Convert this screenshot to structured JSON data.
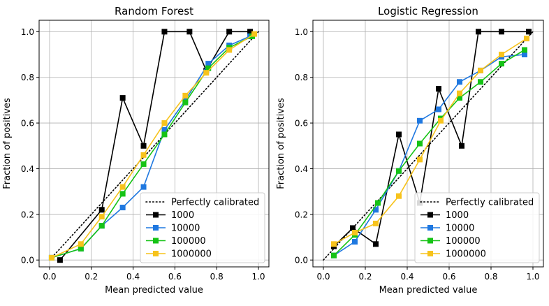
{
  "chart_data": [
    {
      "type": "line",
      "title": "Random Forest",
      "xlabel": "Mean predicted value",
      "ylabel": "Fraction of positives",
      "xlim": [
        -0.05,
        1.05
      ],
      "ylim": [
        -0.03,
        1.05
      ],
      "xticks": [
        "0.0",
        "0.2",
        "0.4",
        "0.6",
        "0.8",
        "1.0"
      ],
      "yticks": [
        "0.0",
        "0.2",
        "0.4",
        "0.6",
        "0.8",
        "1.0"
      ],
      "grid": true,
      "legend_position": "lower-right",
      "legend_entries": [
        "Perfectly calibrated",
        "1000",
        "10000",
        "100000",
        "1000000"
      ],
      "reference_line": {
        "name": "Perfectly calibrated",
        "x": [
          0,
          1
        ],
        "y": [
          0,
          1
        ],
        "color": "#000000",
        "style": "dotted"
      },
      "series": [
        {
          "name": "1000",
          "color": "#000000",
          "x": [
            0.05,
            0.25,
            0.35,
            0.45,
            0.55,
            0.67,
            0.75,
            0.86,
            0.96
          ],
          "y": [
            0.0,
            0.22,
            0.71,
            0.5,
            1.0,
            1.0,
            0.83,
            1.0,
            1.0
          ]
        },
        {
          "name": "10000",
          "color": "#1f78e0",
          "x": [
            0.01,
            0.15,
            0.25,
            0.35,
            0.45,
            0.55,
            0.65,
            0.76,
            0.86,
            0.96
          ],
          "y": [
            0.01,
            0.05,
            0.15,
            0.23,
            0.32,
            0.57,
            0.7,
            0.86,
            0.94,
            0.98
          ]
        },
        {
          "name": "100000",
          "color": "#16c316",
          "x": [
            0.01,
            0.15,
            0.25,
            0.35,
            0.45,
            0.55,
            0.65,
            0.76,
            0.86,
            0.97
          ],
          "y": [
            0.01,
            0.05,
            0.15,
            0.29,
            0.42,
            0.55,
            0.69,
            0.84,
            0.93,
            0.98
          ]
        },
        {
          "name": "1000000",
          "color": "#f7c31c",
          "x": [
            0.01,
            0.15,
            0.25,
            0.35,
            0.45,
            0.55,
            0.65,
            0.75,
            0.86,
            0.98
          ],
          "y": [
            0.01,
            0.07,
            0.19,
            0.32,
            0.46,
            0.6,
            0.72,
            0.82,
            0.92,
            0.99
          ]
        }
      ]
    },
    {
      "type": "line",
      "title": "Logistic Regression",
      "xlabel": "Mean predicted value",
      "ylabel": "Fraction of positives",
      "xlim": [
        -0.05,
        1.05
      ],
      "ylim": [
        -0.03,
        1.05
      ],
      "xticks": [
        "0.0",
        "0.2",
        "0.4",
        "0.6",
        "0.8",
        "1.0"
      ],
      "yticks": [
        "0.0",
        "0.2",
        "0.4",
        "0.6",
        "0.8",
        "1.0"
      ],
      "grid": true,
      "legend_position": "lower-right",
      "legend_entries": [
        "Perfectly calibrated",
        "1000",
        "10000",
        "100000",
        "1000000"
      ],
      "reference_line": {
        "name": "Perfectly calibrated",
        "x": [
          0,
          1
        ],
        "y": [
          0,
          1
        ],
        "color": "#000000",
        "style": "dotted"
      },
      "series": [
        {
          "name": "1000",
          "color": "#000000",
          "x": [
            0.05,
            0.14,
            0.25,
            0.36,
            0.46,
            0.55,
            0.66,
            0.74,
            0.85,
            0.98
          ],
          "y": [
            0.06,
            0.14,
            0.07,
            0.55,
            0.25,
            0.75,
            0.5,
            1.0,
            1.0,
            1.0
          ]
        },
        {
          "name": "10000",
          "color": "#1f78e0",
          "x": [
            0.05,
            0.15,
            0.25,
            0.36,
            0.46,
            0.55,
            0.65,
            0.75,
            0.85,
            0.96
          ],
          "y": [
            0.02,
            0.08,
            0.22,
            0.39,
            0.61,
            0.66,
            0.78,
            0.83,
            0.89,
            0.9
          ]
        },
        {
          "name": "100000",
          "color": "#16c316",
          "x": [
            0.05,
            0.15,
            0.26,
            0.36,
            0.46,
            0.56,
            0.65,
            0.75,
            0.85,
            0.96
          ],
          "y": [
            0.02,
            0.11,
            0.25,
            0.39,
            0.51,
            0.62,
            0.71,
            0.78,
            0.86,
            0.92
          ]
        },
        {
          "name": "1000000",
          "color": "#f7c31c",
          "x": [
            0.05,
            0.15,
            0.25,
            0.36,
            0.46,
            0.56,
            0.65,
            0.75,
            0.85,
            0.97
          ],
          "y": [
            0.07,
            0.12,
            0.16,
            0.28,
            0.44,
            0.61,
            0.73,
            0.83,
            0.9,
            0.97
          ]
        }
      ]
    }
  ]
}
